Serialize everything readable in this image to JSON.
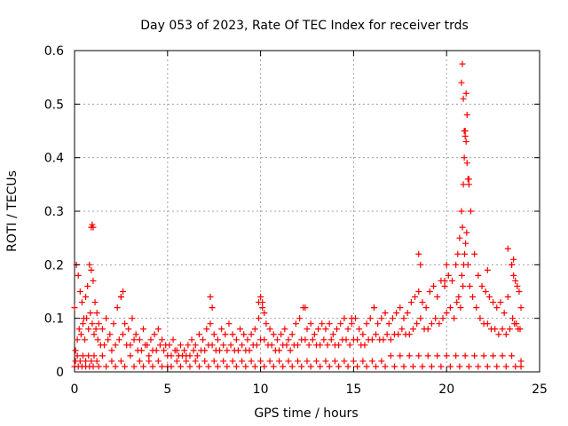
{
  "chart_data": {
    "type": "scatter",
    "title": "Day 053 of 2023, Rate Of TEC Index for receiver trds",
    "xlabel": "GPS time / hours",
    "ylabel": "ROTI / TECUs",
    "xlim": [
      0,
      25
    ],
    "ylim": [
      0,
      0.6
    ],
    "xticks": [
      "0",
      "5",
      "10",
      "15",
      "20",
      "25"
    ],
    "yticks": [
      "0",
      "0.1",
      "0.2",
      "0.3",
      "0.4",
      "0.5",
      "0.6"
    ],
    "grid": true,
    "marker": "+",
    "color": "#ff0000",
    "series": [
      {
        "x": [
          0.0,
          0.1,
          0.2,
          0.3,
          0.4,
          0.5,
          0.6,
          0.7,
          0.8,
          0.9,
          1.0,
          1.1,
          1.2,
          1.3,
          1.5,
          1.7,
          1.9,
          2.1,
          2.3,
          2.5,
          2.7,
          2.9,
          3.1,
          3.3,
          3.5,
          3.7,
          3.9,
          4.1,
          4.3,
          4.5,
          4.7,
          4.9,
          5.1,
          5.3,
          5.5,
          5.7,
          5.9,
          6.1,
          6.3,
          6.5,
          6.7,
          6.9,
          7.1,
          7.3,
          7.5,
          7.7,
          7.9,
          8.1,
          8.3,
          8.5,
          8.7,
          8.9,
          9.1,
          9.3,
          9.5,
          9.7,
          9.9,
          10.1,
          10.3,
          10.5,
          10.7,
          10.9,
          11.1,
          11.3,
          11.5,
          11.7,
          11.9,
          12.1,
          12.3,
          12.5,
          12.7,
          12.9,
          13.1,
          13.3,
          13.5,
          13.7,
          13.9,
          14.1,
          14.3,
          14.5,
          14.7,
          14.9,
          15.1,
          15.3,
          15.5,
          15.7,
          15.9,
          16.1,
          16.3,
          16.5,
          16.7,
          16.9,
          17.1,
          17.3,
          17.5,
          17.7,
          17.9,
          18.1,
          18.3,
          18.5,
          18.7,
          18.9,
          19.1,
          19.3,
          19.5,
          19.7,
          19.9,
          20.1,
          20.3,
          20.5,
          20.6,
          20.7,
          20.8,
          20.85,
          20.9,
          20.95,
          21.0,
          21.05,
          21.1,
          21.2,
          21.3,
          21.5,
          21.7,
          21.9,
          22.1,
          22.3,
          22.5,
          22.7,
          22.9,
          23.1,
          23.3,
          23.5,
          23.6,
          23.7,
          23.8,
          23.9,
          24.0,
          0.05,
          0.15,
          0.25,
          0.35,
          0.45,
          0.55,
          0.65,
          0.75,
          0.85,
          0.95,
          1.05,
          1.15,
          1.25,
          1.4,
          1.6,
          1.8,
          2.0,
          2.2,
          2.4,
          2.6,
          2.8,
          3.0,
          3.2,
          3.4,
          3.6,
          3.8,
          4.0,
          4.2,
          4.4,
          4.6,
          4.8,
          5.0,
          5.2,
          5.4,
          5.6,
          5.8,
          6.0,
          6.2,
          6.4,
          6.6,
          6.8,
          7.0,
          7.2,
          7.4,
          7.6,
          7.8,
          8.0,
          8.2,
          8.4,
          8.6,
          8.8,
          9.0,
          9.2,
          9.4,
          9.6,
          9.8,
          10.0,
          10.2,
          10.4,
          10.6,
          10.8,
          11.0,
          11.2,
          11.4,
          11.6,
          11.8,
          12.0,
          12.2,
          12.4,
          12.6,
          12.8,
          13.0,
          13.2,
          13.4,
          13.6,
          13.8,
          14.0,
          14.2,
          14.4,
          14.6,
          14.8,
          15.0,
          15.2,
          15.4,
          15.6,
          15.8,
          16.0,
          16.2,
          16.4,
          16.6,
          16.8,
          17.0,
          17.2,
          17.4,
          17.6,
          17.8,
          18.0,
          18.2,
          18.4,
          18.6,
          18.8,
          19.0,
          19.2,
          19.4,
          19.6,
          19.8,
          20.0,
          20.2,
          20.4,
          20.55,
          20.65,
          20.75,
          20.82,
          20.88,
          20.92,
          20.97,
          21.02,
          21.08,
          21.15,
          21.25,
          21.4,
          21.6,
          21.8,
          22.0,
          22.2,
          22.4,
          22.6,
          22.8,
          23.0,
          23.2,
          23.4,
          23.55,
          23.65,
          23.75,
          23.85,
          23.95,
          0.05,
          0.15,
          0.3,
          0.45,
          0.6,
          0.75,
          0.9,
          1.05,
          1.2,
          1.5,
          2.0,
          2.5,
          3.0,
          3.5,
          4.0,
          4.5,
          5.0,
          5.5,
          6.0,
          6.5,
          7.0,
          7.5,
          8.0,
          8.5,
          9.0,
          9.5,
          10.0,
          10.5,
          11.0,
          11.5,
          12.0,
          12.5,
          13.0,
          13.5,
          14.0,
          14.5,
          15.0,
          15.5,
          16.0,
          16.5,
          17.0,
          17.5,
          18.0,
          18.5,
          19.0,
          19.5,
          20.0,
          20.5,
          21.0,
          21.5,
          22.0,
          22.5,
          23.0,
          23.5,
          24.0,
          0.0,
          0.2,
          0.4,
          0.6,
          0.8,
          1.0,
          1.3,
          1.7,
          2.2,
          2.7,
          3.2,
          3.7,
          4.2,
          4.7,
          5.2,
          5.7,
          6.2,
          6.7,
          7.2,
          7.7,
          8.2,
          8.7,
          9.2,
          9.7,
          10.2,
          10.7,
          11.2,
          11.7,
          12.2,
          12.7,
          13.2,
          13.7,
          14.2,
          14.7,
          15.2,
          15.7,
          16.2,
          16.7,
          17.2,
          17.7,
          18.2,
          18.7,
          19.2,
          19.7,
          20.2,
          20.7,
          21.2,
          21.7,
          22.2,
          22.7,
          23.2,
          23.7,
          24.0,
          0.9,
          0.95,
          1.0,
          2.5,
          2.6,
          7.3,
          7.4,
          9.9,
          10.0,
          10.1,
          10.2,
          12.4,
          14.9,
          16.1,
          18.5,
          18.6,
          19.9,
          20.0,
          20.8,
          20.85,
          20.9,
          20.95,
          21.0,
          21.05,
          21.1,
          21.15,
          21.2,
          22.2,
          23.3,
          23.5,
          23.6
        ],
        "y": [
          0.12,
          0.2,
          0.18,
          0.15,
          0.13,
          0.1,
          0.14,
          0.16,
          0.2,
          0.19,
          0.17,
          0.13,
          0.11,
          0.09,
          0.08,
          0.1,
          0.07,
          0.09,
          0.12,
          0.14,
          0.09,
          0.08,
          0.1,
          0.07,
          0.06,
          0.08,
          0.05,
          0.06,
          0.07,
          0.08,
          0.06,
          0.05,
          0.05,
          0.06,
          0.04,
          0.05,
          0.04,
          0.05,
          0.06,
          0.05,
          0.07,
          0.06,
          0.08,
          0.09,
          0.07,
          0.06,
          0.08,
          0.07,
          0.09,
          0.07,
          0.06,
          0.08,
          0.07,
          0.06,
          0.07,
          0.08,
          0.1,
          0.12,
          0.09,
          0.08,
          0.07,
          0.06,
          0.07,
          0.08,
          0.06,
          0.07,
          0.09,
          0.1,
          0.12,
          0.08,
          0.09,
          0.07,
          0.08,
          0.09,
          0.08,
          0.09,
          0.07,
          0.08,
          0.09,
          0.1,
          0.08,
          0.09,
          0.1,
          0.08,
          0.07,
          0.09,
          0.1,
          0.12,
          0.09,
          0.1,
          0.11,
          0.09,
          0.1,
          0.11,
          0.12,
          0.1,
          0.11,
          0.13,
          0.14,
          0.15,
          0.13,
          0.12,
          0.15,
          0.16,
          0.14,
          0.17,
          0.16,
          0.18,
          0.17,
          0.2,
          0.22,
          0.25,
          0.3,
          0.27,
          0.35,
          0.4,
          0.45,
          0.52,
          0.48,
          0.36,
          0.3,
          0.22,
          0.18,
          0.16,
          0.15,
          0.14,
          0.13,
          0.12,
          0.13,
          0.11,
          0.14,
          0.2,
          0.18,
          0.17,
          0.16,
          0.15,
          0.12,
          0.04,
          0.06,
          0.08,
          0.07,
          0.09,
          0.06,
          0.1,
          0.08,
          0.11,
          0.09,
          0.07,
          0.08,
          0.06,
          0.05,
          0.05,
          0.06,
          0.04,
          0.05,
          0.06,
          0.07,
          0.05,
          0.05,
          0.06,
          0.04,
          0.04,
          0.05,
          0.03,
          0.04,
          0.04,
          0.05,
          0.04,
          0.03,
          0.03,
          0.04,
          0.03,
          0.03,
          0.03,
          0.03,
          0.04,
          0.03,
          0.04,
          0.04,
          0.05,
          0.05,
          0.04,
          0.04,
          0.05,
          0.04,
          0.05,
          0.04,
          0.04,
          0.05,
          0.04,
          0.04,
          0.05,
          0.05,
          0.06,
          0.06,
          0.05,
          0.05,
          0.04,
          0.04,
          0.05,
          0.05,
          0.04,
          0.05,
          0.05,
          0.06,
          0.06,
          0.05,
          0.06,
          0.05,
          0.05,
          0.06,
          0.05,
          0.06,
          0.05,
          0.05,
          0.06,
          0.06,
          0.05,
          0.06,
          0.06,
          0.05,
          0.05,
          0.06,
          0.06,
          0.07,
          0.06,
          0.06,
          0.07,
          0.06,
          0.07,
          0.07,
          0.08,
          0.07,
          0.07,
          0.08,
          0.09,
          0.1,
          0.08,
          0.08,
          0.09,
          0.1,
          0.09,
          0.1,
          0.11,
          0.12,
          0.1,
          0.13,
          0.14,
          0.12,
          0.18,
          0.16,
          0.2,
          0.22,
          0.24,
          0.26,
          0.2,
          0.16,
          0.14,
          0.12,
          0.1,
          0.09,
          0.09,
          0.08,
          0.08,
          0.07,
          0.08,
          0.07,
          0.08,
          0.1,
          0.09,
          0.09,
          0.08,
          0.08,
          0.02,
          0.03,
          0.02,
          0.03,
          0.02,
          0.03,
          0.02,
          0.03,
          0.02,
          0.03,
          0.02,
          0.02,
          0.03,
          0.02,
          0.02,
          0.02,
          0.01,
          0.02,
          0.02,
          0.02,
          0.02,
          0.02,
          0.02,
          0.02,
          0.02,
          0.02,
          0.02,
          0.02,
          0.02,
          0.02,
          0.02,
          0.02,
          0.02,
          0.02,
          0.02,
          0.02,
          0.02,
          0.02,
          0.02,
          0.02,
          0.03,
          0.03,
          0.03,
          0.03,
          0.03,
          0.03,
          0.03,
          0.03,
          0.03,
          0.03,
          0.03,
          0.03,
          0.03,
          0.03,
          0.02,
          0.01,
          0.01,
          0.01,
          0.01,
          0.01,
          0.01,
          0.01,
          0.01,
          0.01,
          0.01,
          0.01,
          0.01,
          0.01,
          0.01,
          0.01,
          0.01,
          0.01,
          0.01,
          0.01,
          0.01,
          0.01,
          0.01,
          0.01,
          0.01,
          0.01,
          0.01,
          0.01,
          0.01,
          0.01,
          0.01,
          0.01,
          0.01,
          0.01,
          0.01,
          0.01,
          0.01,
          0.01,
          0.01,
          0.01,
          0.01,
          0.01,
          0.01,
          0.01,
          0.01,
          0.01,
          0.01,
          0.01,
          0.01,
          0.01,
          0.01,
          0.01,
          0.01,
          0.01,
          0.27,
          0.275,
          0.27,
          0.14,
          0.15,
          0.14,
          0.12,
          0.13,
          0.14,
          0.13,
          0.11,
          0.12,
          0.1,
          0.12,
          0.22,
          0.2,
          0.17,
          0.2,
          0.54,
          0.575,
          0.51,
          0.45,
          0.44,
          0.43,
          0.39,
          0.36,
          0.35,
          0.19,
          0.23,
          0.2,
          0.21
        ]
      }
    ]
  }
}
